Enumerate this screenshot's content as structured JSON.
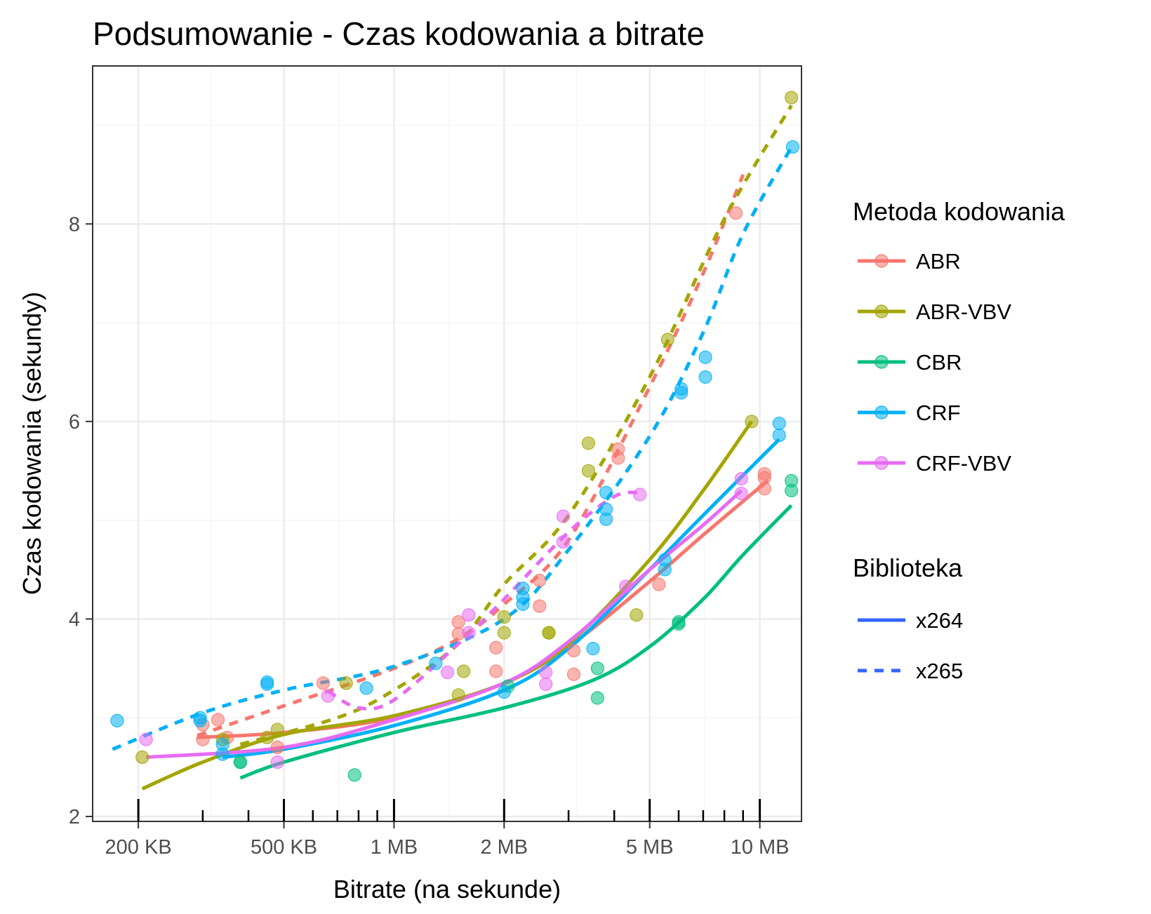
{
  "chart_data": {
    "type": "scatter",
    "title": "Podsumowanie - Czas kodowania a bitrate",
    "xlabel": "Bitrate (na sekunde)",
    "ylabel": "Czas kodowania (sekundy)",
    "x_scale": "log10",
    "x_unit": "KB",
    "xlim": [
      150,
      13000
    ],
    "ylim": [
      1.95,
      9.6
    ],
    "x_ticks": [
      {
        "value": 200,
        "label": "200 KB"
      },
      {
        "value": 500,
        "label": "500 KB"
      },
      {
        "value": 1000,
        "label": "1 MB"
      },
      {
        "value": 2000,
        "label": "2 MB"
      },
      {
        "value": 5000,
        "label": "5 MB"
      },
      {
        "value": 10000,
        "label": "10 MB"
      }
    ],
    "x_minor_ticks": [
      300,
      400,
      600,
      700,
      800,
      900,
      3000,
      4000,
      6000,
      7000,
      8000,
      9000
    ],
    "y_ticks": [
      {
        "value": 2,
        "label": "2"
      },
      {
        "value": 4,
        "label": "4"
      },
      {
        "value": 6,
        "label": "6"
      },
      {
        "value": 8,
        "label": "8"
      }
    ],
    "grid": true,
    "legend": {
      "position": "right",
      "color_title": "Metoda kodowania",
      "linetype_title": "Biblioteka",
      "colors": [
        {
          "name": "ABR",
          "color": "#F8766D"
        },
        {
          "name": "ABR-VBV",
          "color": "#A3A500"
        },
        {
          "name": "CBR",
          "color": "#00BF7D"
        },
        {
          "name": "CRF",
          "color": "#00B0F6"
        },
        {
          "name": "CRF-VBV",
          "color": "#E76BF3"
        }
      ],
      "linetypes": [
        {
          "name": "x264",
          "style": "solid",
          "color": "#3366FF"
        },
        {
          "name": "x265",
          "style": "dashed",
          "color": "#3366FF"
        }
      ]
    },
    "series": [
      {
        "name": "ABR",
        "color": "#F8766D",
        "points": [
          [
            300,
            2.93
          ],
          [
            300,
            2.78
          ],
          [
            330,
            2.98
          ],
          [
            350,
            2.8
          ],
          [
            480,
            2.7
          ],
          [
            640,
            3.35
          ],
          [
            1500,
            3.97
          ],
          [
            1500,
            3.85
          ],
          [
            1900,
            3.71
          ],
          [
            1900,
            3.47
          ],
          [
            2500,
            4.13
          ],
          [
            2500,
            4.39
          ],
          [
            3100,
            3.68
          ],
          [
            3100,
            3.44
          ],
          [
            4100,
            5.72
          ],
          [
            4100,
            5.63
          ],
          [
            5300,
            4.35
          ],
          [
            8600,
            8.11
          ],
          [
            10300,
            5.47
          ],
          [
            10300,
            5.43
          ],
          [
            10300,
            5.32
          ]
        ],
        "x264": [
          [
            290,
            2.8
          ],
          [
            500,
            2.85
          ],
          [
            1000,
            3.0
          ],
          [
            2000,
            3.35
          ],
          [
            3000,
            3.72
          ],
          [
            5000,
            4.38
          ],
          [
            7000,
            4.85
          ],
          [
            10500,
            5.4
          ]
        ],
        "x265": [
          [
            290,
            2.82
          ],
          [
            500,
            3.12
          ],
          [
            1000,
            3.5
          ],
          [
            1500,
            3.8
          ],
          [
            2000,
            4.15
          ],
          [
            3000,
            4.8
          ],
          [
            5000,
            6.35
          ],
          [
            7000,
            7.5
          ],
          [
            9000,
            8.5
          ]
        ]
      },
      {
        "name": "ABR-VBV",
        "color": "#A3A500",
        "points": [
          [
            205,
            2.6
          ],
          [
            340,
            2.78
          ],
          [
            450,
            2.8
          ],
          [
            480,
            2.88
          ],
          [
            740,
            3.35
          ],
          [
            1500,
            3.23
          ],
          [
            1550,
            3.47
          ],
          [
            2000,
            4.02
          ],
          [
            2000,
            3.86
          ],
          [
            2650,
            3.86
          ],
          [
            2650,
            3.86
          ],
          [
            3400,
            5.5
          ],
          [
            3400,
            5.78
          ],
          [
            4600,
            4.04
          ],
          [
            5600,
            6.83
          ],
          [
            9500,
            6.0
          ],
          [
            12200,
            9.28
          ]
        ],
        "x264": [
          [
            205,
            2.28
          ],
          [
            300,
            2.55
          ],
          [
            500,
            2.83
          ],
          [
            1000,
            3.02
          ],
          [
            2000,
            3.35
          ],
          [
            3000,
            3.75
          ],
          [
            5000,
            4.6
          ],
          [
            7000,
            5.3
          ],
          [
            9500,
            6.0
          ]
        ],
        "x265": [
          [
            380,
            2.73
          ],
          [
            700,
            3.0
          ],
          [
            1000,
            3.28
          ],
          [
            1500,
            3.75
          ],
          [
            2000,
            4.35
          ],
          [
            3000,
            5.05
          ],
          [
            5000,
            6.45
          ],
          [
            8000,
            8.05
          ],
          [
            12200,
            9.2
          ]
        ]
      },
      {
        "name": "CBR",
        "color": "#00BF7D",
        "points": [
          [
            380,
            2.55
          ],
          [
            380,
            2.55
          ],
          [
            780,
            2.42
          ],
          [
            2050,
            3.32
          ],
          [
            3600,
            3.5
          ],
          [
            3600,
            3.2
          ],
          [
            6000,
            3.97
          ],
          [
            6000,
            3.95
          ],
          [
            12200,
            5.4
          ],
          [
            12200,
            5.3
          ]
        ],
        "x264": [
          [
            380,
            2.39
          ],
          [
            500,
            2.55
          ],
          [
            1000,
            2.85
          ],
          [
            2000,
            3.1
          ],
          [
            3500,
            3.38
          ],
          [
            5000,
            3.72
          ],
          [
            7000,
            4.2
          ],
          [
            9000,
            4.65
          ],
          [
            12200,
            5.15
          ]
        ]
      },
      {
        "name": "CRF",
        "color": "#00B0F6",
        "points": [
          [
            175,
            2.97
          ],
          [
            295,
            2.97
          ],
          [
            295,
            3.0
          ],
          [
            340,
            2.73
          ],
          [
            340,
            2.63
          ],
          [
            450,
            3.34
          ],
          [
            450,
            3.36
          ],
          [
            840,
            3.3
          ],
          [
            1300,
            3.55
          ],
          [
            2000,
            3.26
          ],
          [
            2250,
            4.15
          ],
          [
            2250,
            4.22
          ],
          [
            2250,
            4.31
          ],
          [
            3500,
            3.7
          ],
          [
            3800,
            5.28
          ],
          [
            3800,
            5.01
          ],
          [
            3800,
            5.11
          ],
          [
            5500,
            4.5
          ],
          [
            5500,
            4.6
          ],
          [
            6100,
            6.33
          ],
          [
            6100,
            6.29
          ],
          [
            7100,
            6.45
          ],
          [
            7100,
            6.65
          ],
          [
            11300,
            5.86
          ],
          [
            11300,
            5.98
          ],
          [
            12300,
            8.78
          ]
        ],
        "x264": [
          [
            340,
            2.6
          ],
          [
            500,
            2.68
          ],
          [
            1000,
            2.92
          ],
          [
            2000,
            3.28
          ],
          [
            3000,
            3.7
          ],
          [
            5000,
            4.5
          ],
          [
            7000,
            5.05
          ],
          [
            11300,
            5.82
          ]
        ],
        "x265": [
          [
            170,
            2.68
          ],
          [
            300,
            3.05
          ],
          [
            500,
            3.28
          ],
          [
            1000,
            3.52
          ],
          [
            2000,
            4.0
          ],
          [
            3000,
            4.7
          ],
          [
            5000,
            5.85
          ],
          [
            7000,
            6.9
          ],
          [
            9000,
            7.9
          ],
          [
            12300,
            8.8
          ]
        ]
      },
      {
        "name": "CRF-VBV",
        "color": "#E76BF3",
        "points": [
          [
            210,
            2.78
          ],
          [
            480,
            2.55
          ],
          [
            660,
            3.22
          ],
          [
            1400,
            3.46
          ],
          [
            1600,
            3.86
          ],
          [
            1600,
            4.04
          ],
          [
            2600,
            3.46
          ],
          [
            2600,
            3.34
          ],
          [
            2900,
            5.04
          ],
          [
            2900,
            4.78
          ],
          [
            4300,
            4.33
          ],
          [
            4700,
            5.26
          ],
          [
            8900,
            5.42
          ],
          [
            8900,
            5.27
          ]
        ],
        "x264": [
          [
            210,
            2.6
          ],
          [
            500,
            2.7
          ],
          [
            1000,
            2.98
          ],
          [
            2000,
            3.35
          ],
          [
            3000,
            3.77
          ],
          [
            5000,
            4.5
          ],
          [
            7000,
            4.95
          ],
          [
            8900,
            5.3
          ]
        ],
        "x265": [
          [
            660,
            3.27
          ],
          [
            800,
            3.1
          ],
          [
            1000,
            3.18
          ],
          [
            1500,
            3.75
          ],
          [
            2000,
            4.2
          ],
          [
            3000,
            4.88
          ],
          [
            4000,
            5.24
          ],
          [
            4700,
            5.28
          ]
        ]
      }
    ]
  }
}
